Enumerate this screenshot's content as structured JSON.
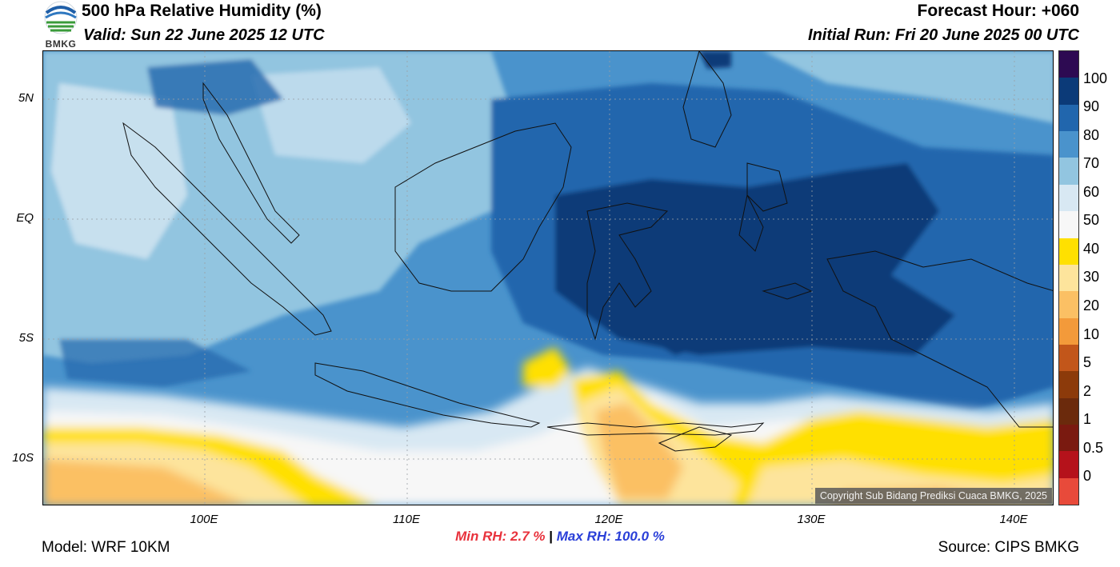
{
  "header": {
    "title": "500 hPa Relative Humidity (%)",
    "valid": "Valid: Sun 22 June 2025 12 UTC",
    "forecast_hour": "Forecast Hour: +060",
    "initial_run": "Initial Run: Fri 20 June 2025 00 UTC"
  },
  "logo": {
    "text": "BMKG",
    "icon": "bmkg-logo-icon"
  },
  "map": {
    "lat_labels": [
      "5N",
      "EQ",
      "5S",
      "10S"
    ],
    "lon_labels": [
      "100E",
      "110E",
      "120E",
      "130E",
      "140E"
    ],
    "copyright": "Copyright Sub Bidang Prediksi Cuaca BMKG, 2025",
    "lat_range": [
      -12,
      7
    ],
    "lon_range": [
      92,
      142
    ]
  },
  "colorbar": {
    "labels": [
      "100",
      "90",
      "80",
      "70",
      "60",
      "50",
      "40",
      "30",
      "20",
      "10",
      "5",
      "2",
      "1",
      "0.5",
      "0"
    ],
    "colors": [
      "#e84a3a",
      "#b5121b",
      "#7a1a10",
      "#6b2a0c",
      "#8c3a0a",
      "#c2561a",
      "#f39a3a",
      "#fbc064",
      "#fde49c",
      "#ffe000",
      "#f7f7f7",
      "#d8e8f3",
      "#92c5e0",
      "#4a93cc",
      "#2166ad",
      "#0b3a78",
      "#2d0a52"
    ]
  },
  "stats": {
    "min_label": "Min RH:",
    "min_value": "2.7 %",
    "separator": "|",
    "max_label": "Max RH:",
    "max_value": "100.0 %"
  },
  "footer": {
    "model": "Model: WRF 10KM",
    "source": "Source: CIPS BMKG"
  }
}
